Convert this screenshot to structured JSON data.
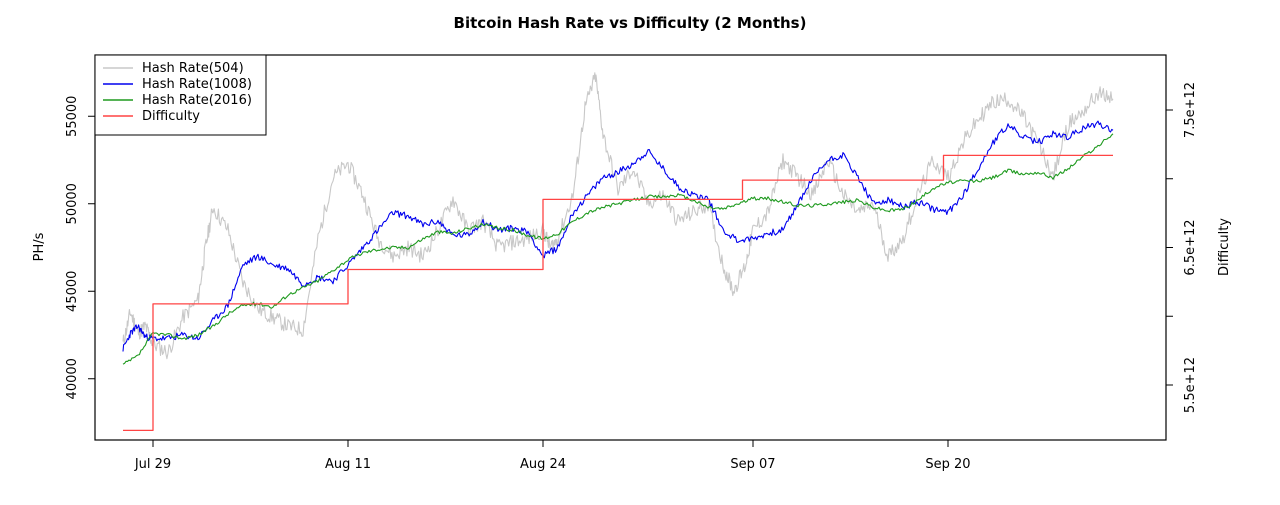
{
  "chart_data": {
    "type": "line",
    "title": "Bitcoin Hash Rate vs Difficulty (2 Months)",
    "xlabel": "",
    "ylabel": "PH/s",
    "y2label": "Difficulty",
    "x_ticks": [
      "Jul 29",
      "Aug 11",
      "Aug 24",
      "Sep 07",
      "Sep 20"
    ],
    "x_tick_days": [
      2,
      15,
      28,
      42,
      55
    ],
    "xlim_days": [
      0,
      67
    ],
    "ylim": [
      36500,
      58500
    ],
    "y_ticks": [
      40000,
      45000,
      50000,
      55000
    ],
    "y_tick_labels": [
      "40000",
      "45000",
      "50000",
      "55000"
    ],
    "y2lim": [
      5100000000000.0,
      7900000000000.0
    ],
    "y2_ticks": [
      5500000000000.0,
      6000000000000.0,
      6500000000000.0,
      7000000000000.0,
      7500000000000.0
    ],
    "y2_tick_labels": [
      "5.5e+12",
      "",
      "6.5e+12",
      "",
      "7.5e+12"
    ],
    "legend_position": "top-left",
    "series": [
      {
        "name": "Hash Rate(504)",
        "color": "#c8c8c8",
        "axis": "left",
        "x": [
          0,
          0.5,
          1,
          1.5,
          2,
          3,
          4,
          5,
          5.5,
          6,
          7,
          8,
          9,
          10,
          11,
          12,
          13,
          14,
          15,
          16,
          17,
          18,
          19,
          20,
          21,
          22,
          23,
          24,
          25,
          26,
          27,
          28,
          28.5,
          29,
          30,
          30.8,
          31.5,
          32,
          33,
          34,
          35,
          36,
          37,
          38,
          39,
          40,
          40.7,
          41.5,
          42,
          43,
          44,
          45,
          46,
          47,
          48,
          49,
          50,
          51,
          52,
          53,
          54,
          55,
          56,
          57,
          58,
          59,
          60,
          61,
          62,
          63,
          64,
          65,
          66
        ],
        "values": [
          42000,
          43800,
          42600,
          43000,
          42000,
          41500,
          43500,
          44500,
          47500,
          49800,
          48500,
          45500,
          44000,
          43500,
          43000,
          42800,
          48000,
          51500,
          52300,
          50500,
          48000,
          47000,
          47500,
          47000,
          48500,
          50300,
          48500,
          49000,
          47500,
          47800,
          48000,
          48500,
          47500,
          48000,
          50500,
          55500,
          57300,
          54000,
          50800,
          52000,
          50000,
          50500,
          49000,
          49500,
          50000,
          46500,
          45000,
          46500,
          48500,
          49500,
          52500,
          51500,
          50500,
          52500,
          50500,
          49500,
          50000,
          47000,
          48000,
          50500,
          52500,
          51500,
          53500,
          54800,
          55800,
          56000,
          55000,
          53500,
          51500,
          54500,
          55300,
          56300,
          56000
        ]
      },
      {
        "name": "Hash Rate(1008)",
        "color": "#0000ee",
        "axis": "left",
        "x": [
          0,
          0.5,
          1,
          1.5,
          2,
          3,
          4,
          5,
          6,
          7,
          8,
          9,
          10,
          11,
          12,
          13,
          14,
          15,
          16,
          17,
          18,
          19,
          20,
          21,
          22,
          23,
          24,
          25,
          26,
          27,
          28,
          29,
          30,
          31,
          32,
          33,
          34,
          35,
          36,
          37,
          38,
          39,
          40,
          41,
          42,
          43,
          44,
          45,
          46,
          47,
          48,
          49,
          50,
          51,
          52,
          53,
          54,
          55,
          56,
          57,
          58,
          59,
          60,
          61,
          62,
          63,
          64,
          65,
          66
        ],
        "values": [
          41700,
          42600,
          43000,
          42400,
          42300,
          42300,
          42500,
          42300,
          43300,
          44200,
          46500,
          47000,
          46500,
          46300,
          45400,
          45800,
          45600,
          46500,
          47500,
          48500,
          49500,
          49300,
          48800,
          49000,
          48200,
          48200,
          49000,
          48500,
          48600,
          48400,
          47000,
          47500,
          49500,
          50500,
          51500,
          51800,
          52300,
          53000,
          52000,
          51000,
          50500,
          50300,
          48500,
          47900,
          48000,
          48300,
          48500,
          50000,
          51500,
          52500,
          52800,
          51500,
          50000,
          50200,
          49800,
          50100,
          49700,
          49500,
          50500,
          52000,
          53500,
          54500,
          53800,
          53500,
          54000,
          53800,
          54300,
          54600,
          54200
        ]
      },
      {
        "name": "Hash Rate(2016)",
        "color": "#1f9a1f",
        "axis": "left",
        "x": [
          0,
          1,
          2,
          3,
          4,
          5,
          6,
          7,
          8,
          9,
          10,
          11,
          12,
          13,
          14,
          15,
          16,
          17,
          18,
          19,
          20,
          21,
          22,
          23,
          24,
          25,
          26,
          27,
          28,
          29,
          30,
          31,
          32,
          33,
          34,
          35,
          36,
          37,
          38,
          39,
          40,
          41,
          42,
          43,
          44,
          45,
          46,
          47,
          48,
          49,
          50,
          51,
          52,
          53,
          54,
          55,
          56,
          57,
          58,
          59,
          60,
          61,
          62,
          63,
          64,
          65,
          66
        ],
        "values": [
          40800,
          41300,
          42600,
          42500,
          42300,
          42500,
          43000,
          43700,
          44200,
          44300,
          44100,
          44800,
          45200,
          45600,
          46200,
          46800,
          47200,
          47400,
          47500,
          47500,
          48000,
          48400,
          48300,
          48600,
          48800,
          48600,
          48500,
          48200,
          48000,
          48300,
          49000,
          49500,
          49800,
          50000,
          50200,
          50400,
          50400,
          50500,
          50200,
          49800,
          49700,
          50000,
          50300,
          50300,
          50100,
          49900,
          49900,
          50000,
          50100,
          50200,
          49800,
          49600,
          49700,
          50200,
          50900,
          51200,
          51300,
          51300,
          51500,
          51900,
          51700,
          51800,
          51500,
          52000,
          52700,
          53300,
          54000
        ]
      },
      {
        "name": "Difficulty",
        "color": "#ff4444",
        "axis": "right",
        "x": [
          0,
          2,
          2,
          15,
          15,
          28,
          28,
          41.3,
          41.3,
          54.7,
          54.7,
          66
        ],
        "values": [
          5170000000000.0,
          5170000000000.0,
          6090000000000.0,
          6090000000000.0,
          6340000000000.0,
          6340000000000.0,
          6850000000000.0,
          6850000000000.0,
          6990000000000.0,
          6990000000000.0,
          7170000000000.0,
          7170000000000.0
        ]
      }
    ]
  }
}
